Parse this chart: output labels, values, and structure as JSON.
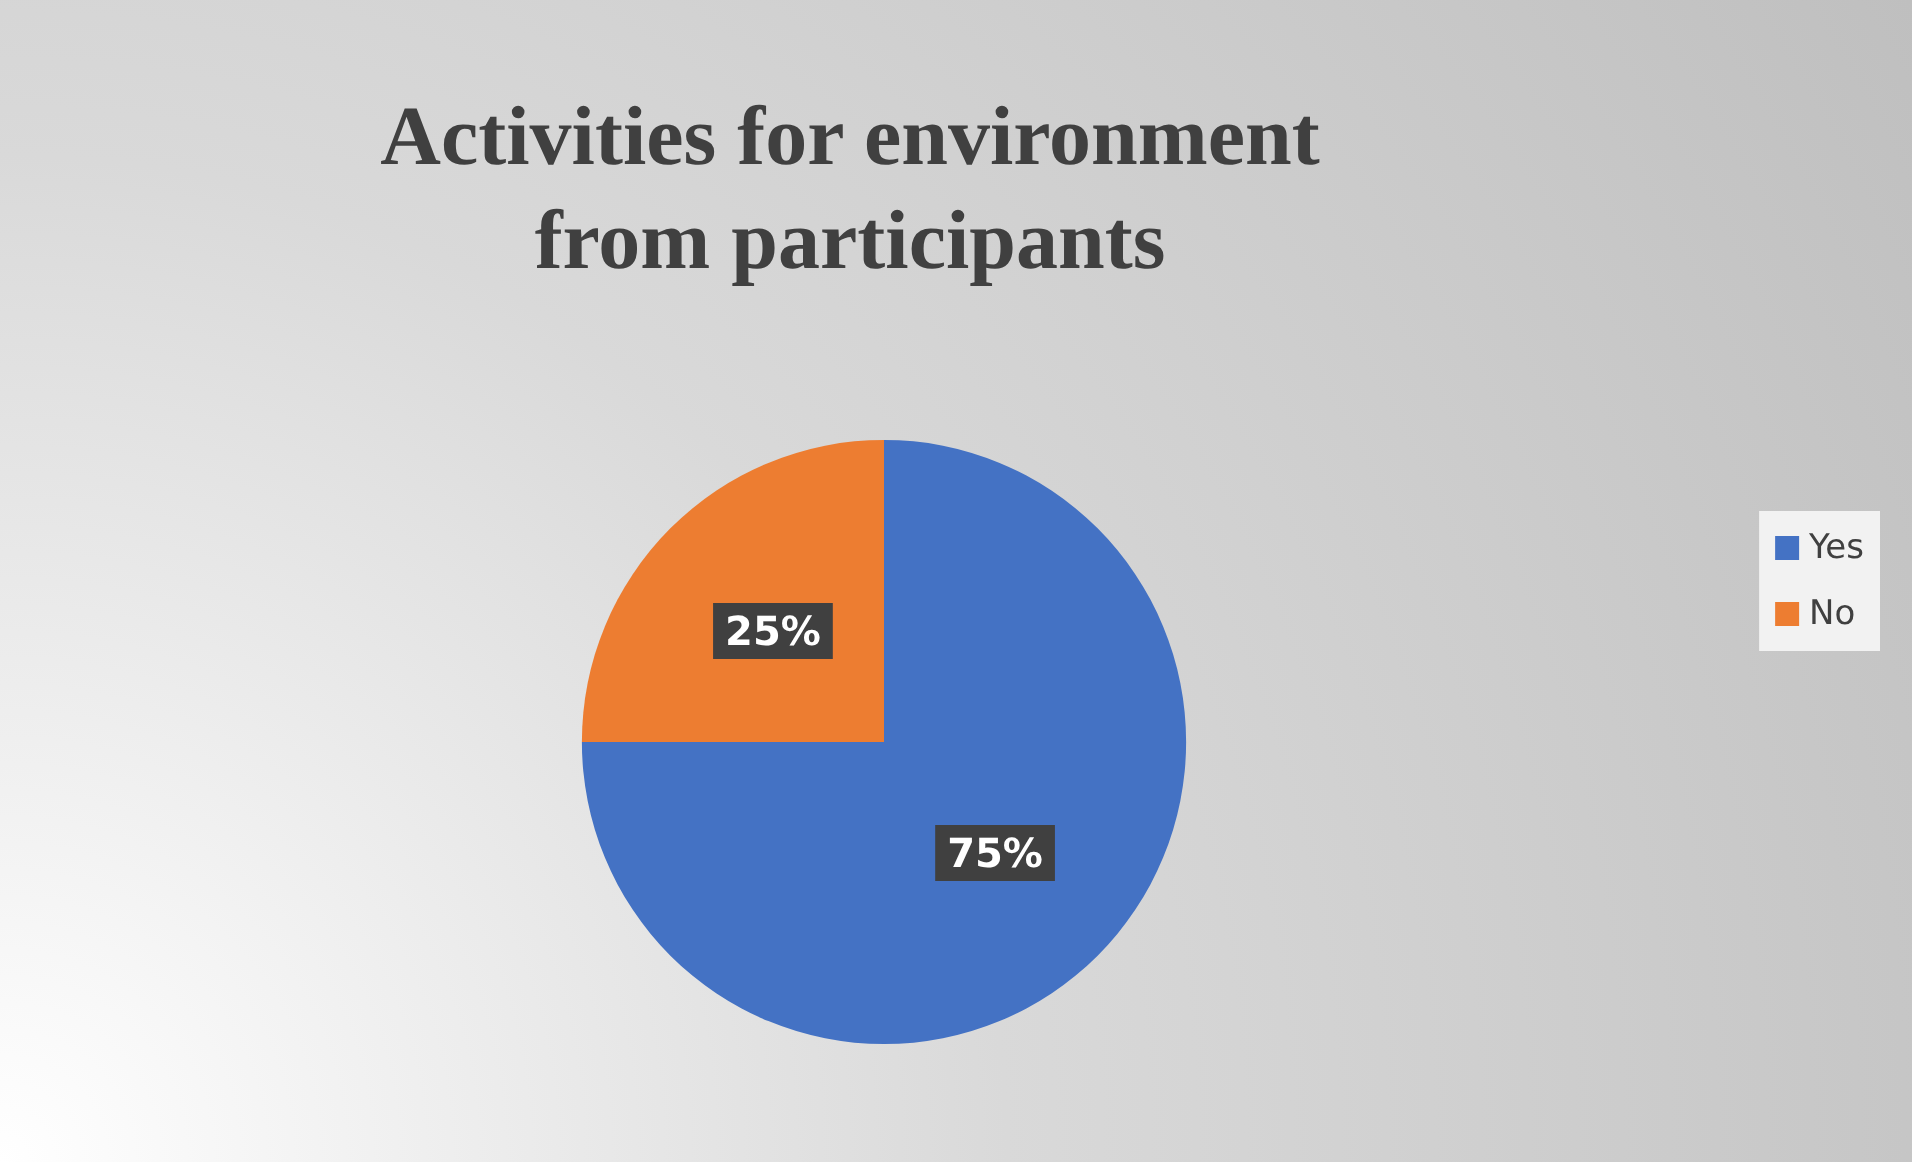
{
  "chart_data": {
    "type": "pie",
    "title": "Activities for environment\nfrom participants",
    "categories": [
      "Yes",
      "No"
    ],
    "values": [
      75,
      25
    ],
    "colors": [
      "#4472c4",
      "#ed7d31"
    ],
    "value_labels": [
      "75%",
      "25%"
    ],
    "legend": "right"
  }
}
